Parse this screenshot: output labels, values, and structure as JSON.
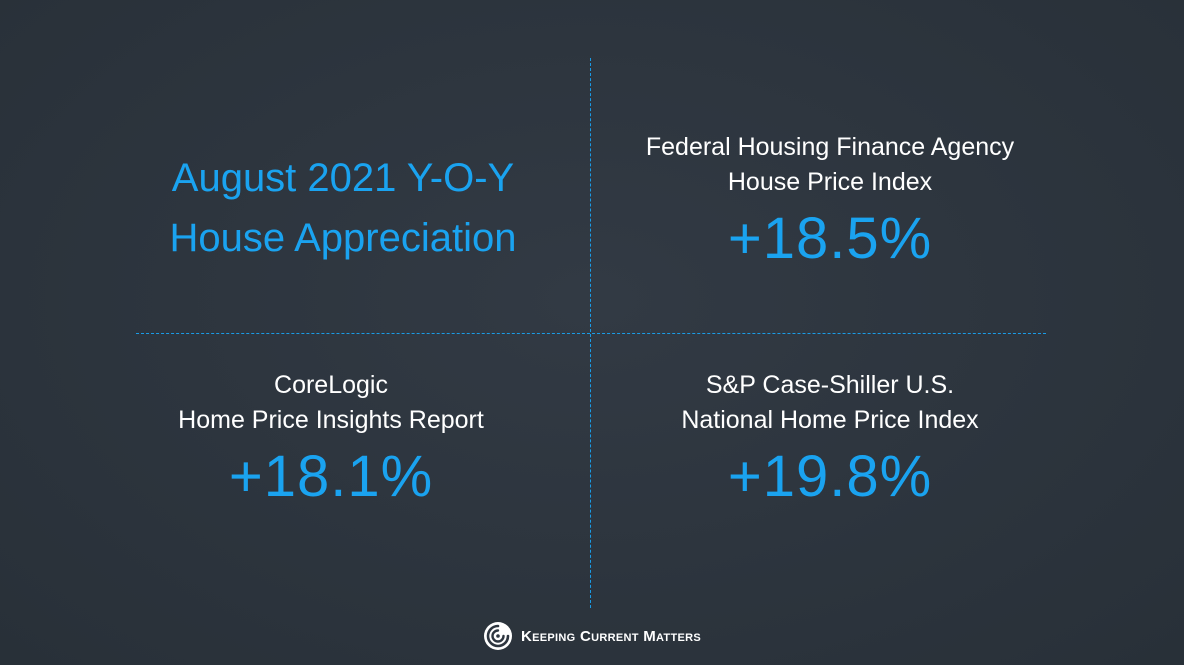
{
  "title": {
    "line1": "August 2021 Y-O-Y",
    "line2": "House Appreciation"
  },
  "cells": {
    "fhfa": {
      "line1": "Federal Housing Finance Agency",
      "line2": "House Price Index",
      "value": "+18.5%"
    },
    "corelogic": {
      "line1": "CoreLogic",
      "line2": "Home Price Insights Report",
      "value": "+18.1%"
    },
    "caseshiller": {
      "line1": "S&P Case-Shiller U.S.",
      "line2": "National Home Price Index",
      "value": "+19.8%"
    }
  },
  "footer": {
    "brand": "Keeping Current Matters",
    "icon": "kcm-logo-icon"
  },
  "colors": {
    "accent": "#1aa3f0",
    "background": "#2e3640",
    "text": "#ffffff"
  }
}
